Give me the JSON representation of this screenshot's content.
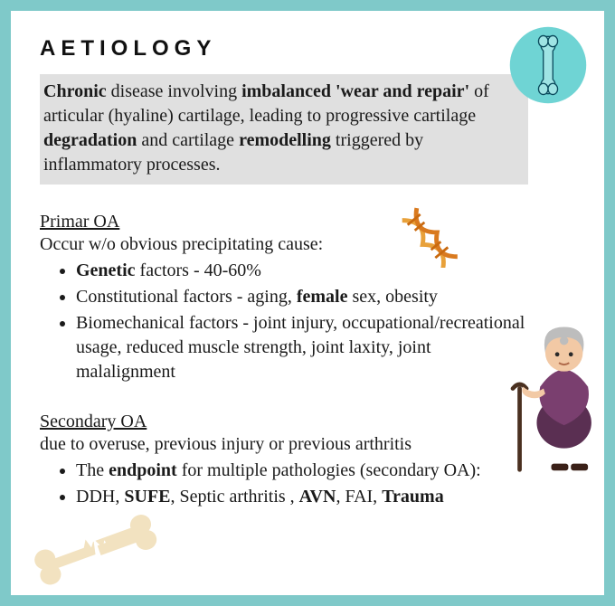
{
  "title": "AETIOLOGY",
  "definition_html": "<b>Chronic</b> disease involving <b>imbalanced 'wear and repair'</b> of articular (hyaline) cartilage, leading to progressive cartilage <b>degradation</b> and cartilage <b>remodelling</b> triggered by inflammatory processes.",
  "primary": {
    "heading": "Primar OA",
    "lead": "Occur w/o obvious precipitating cause:",
    "items_html": [
      "<b>Genetic</b> factors - 40-60%",
      "Constitutional factors - aging, <b>female</b> sex, obesity",
      "Biomechanical factors - joint injury, occupational/recreational usage, reduced muscle strength, joint laxity, joint malalignment"
    ]
  },
  "secondary": {
    "heading": "Secondary OA",
    "lead": "due to overuse, previous injury or previous arthritis",
    "items_html": [
      "The <b>endpoint</b> for multiple pathologies (secondary OA):",
      "DDH, <b>SUFE</b>, Septic arthritis , <b>AVN</b>, FAI, <b>Trauma</b>"
    ]
  },
  "colors": {
    "page_bg": "#7fc9c9",
    "card_bg": "#ffffff",
    "definition_bg": "#e0e0e0",
    "text": "#1a1a1a",
    "bone_circle_bg": "#6fd4d4",
    "bone_stroke": "#0a4a5c",
    "dna_strand1": "#e8a13a",
    "dna_strand2": "#d97a1f",
    "elderly_hair": "#bdbdbd",
    "elderly_skin": "#f2c9a5",
    "elderly_top": "#7a3f6f",
    "elderly_bottom": "#5a2f52",
    "cane": "#4a3020",
    "broken_bone_fill": "#f2e2c0"
  }
}
